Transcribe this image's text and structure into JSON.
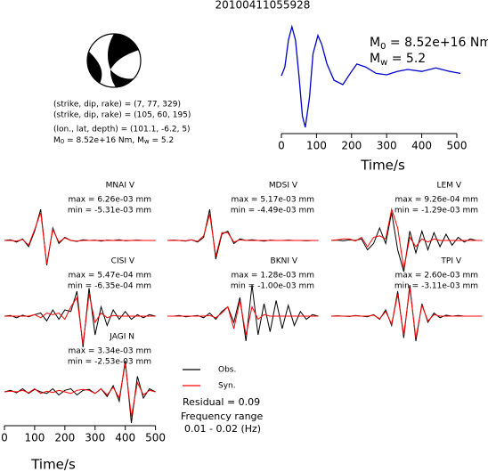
{
  "chart_data": [
    {
      "type": "line",
      "title": "20100411055928",
      "x": [
        0,
        10,
        20,
        30,
        40,
        50,
        60,
        68,
        80,
        90,
        104,
        115,
        130,
        150,
        175,
        200,
        215,
        240,
        270,
        300,
        330,
        360,
        400,
        440,
        480,
        510
      ],
      "values": [
        0,
        0.18,
        0.73,
        1.0,
        0.73,
        0,
        -0.82,
        -1.05,
        -0.45,
        0.45,
        0.82,
        0.64,
        0.24,
        -0.09,
        -0.18,
        0.09,
        0.24,
        0.18,
        0.05,
        0.02,
        0.09,
        0.13,
        0.09,
        0.16,
        0.09,
        0.05
      ],
      "color": "#0000cc",
      "xlim": [
        0,
        510
      ],
      "xticks": [
        0,
        100,
        200,
        300,
        400,
        500
      ],
      "xlabel": "Time/s",
      "moment": {
        "m": "M",
        "sub": "0",
        "text": " = 8.52e+16 Nm"
      },
      "magnitude": {
        "m": "M",
        "sub": "w",
        "text": " = 5.2"
      }
    },
    {
      "type": "waveforms",
      "x": [
        0,
        20,
        40,
        60,
        80,
        100,
        120,
        140,
        160,
        180,
        200,
        220,
        240,
        260,
        280,
        300,
        320,
        340,
        360,
        380,
        400,
        420,
        440,
        460,
        480,
        500
      ],
      "xlim": [
        0,
        510
      ],
      "xticks": [
        0,
        100,
        200,
        300,
        400,
        500
      ],
      "xlabel": "Time/s",
      "series": [
        {
          "name": "Obs.",
          "color": "#000000"
        },
        {
          "name": "Syn.",
          "color": "#ff0000"
        }
      ],
      "panels": [
        {
          "station": "MNAI V",
          "max": "max = 6.26e-03 mm",
          "min": "min = -5.31e-03 mm",
          "obs": [
            0,
            0.02,
            -0.05,
            0.05,
            -0.2,
            0.3,
            1.0,
            -0.8,
            0.4,
            -0.1,
            0.1,
            0,
            -0.03,
            0.02,
            0,
            0.01,
            -0.02,
            0.01,
            0,
            0.02,
            -0.01,
            0,
            0.01,
            0,
            0,
            0
          ],
          "syn": [
            0,
            0,
            -0.02,
            0.03,
            -0.15,
            0.35,
            0.9,
            -0.75,
            0.35,
            -0.05,
            0.08,
            0,
            -0.02,
            0,
            0,
            0,
            0,
            0,
            0,
            0,
            0,
            0,
            0,
            0,
            0,
            0
          ]
        },
        {
          "station": "MDSI V",
          "max": "max = 5.17e-03 mm",
          "min": "min = -4.49e-03 mm",
          "obs": [
            0,
            0.01,
            0,
            -0.02,
            0.02,
            -0.05,
            0.1,
            1.0,
            -0.6,
            0.2,
            0.3,
            -0.1,
            0.05,
            0,
            0.02,
            0,
            -0.02,
            0.01,
            0,
            0,
            0.01,
            0,
            0,
            -0.01,
            0,
            0
          ],
          "syn": [
            0,
            0,
            0,
            -0.01,
            0.02,
            -0.03,
            0.15,
            0.85,
            -0.5,
            0.25,
            0.25,
            -0.05,
            0.02,
            0,
            0,
            0,
            0,
            0,
            0,
            0,
            0,
            0,
            0,
            0,
            0,
            0
          ]
        },
        {
          "station": "LEM V",
          "max": "max = 9.26e-04 mm",
          "min": "min = -1.29e-03 mm",
          "obs": [
            0,
            0.01,
            -0.01,
            0.02,
            0,
            0.05,
            -0.3,
            -0.1,
            0.4,
            -0.1,
            0.9,
            -0.3,
            -1.0,
            0.3,
            -0.4,
            0.3,
            -0.3,
            0.25,
            -0.2,
            0.2,
            -0.15,
            0.1,
            -0.05,
            0.05,
            0,
            0
          ],
          "syn": [
            0,
            0.02,
            0.05,
            0.05,
            -0.02,
            0.1,
            -0.2,
            0.1,
            0.15,
            0.05,
            1.0,
            0.4,
            -0.9,
            0.1,
            -0.2,
            0.05,
            -0.05,
            0.05,
            0,
            0,
            0,
            0,
            0,
            0,
            0,
            0
          ]
        },
        {
          "station": "CISI V",
          "max": "max = 5.47e-04 mm",
          "min": "min = -6.35e-04 mm",
          "obs": [
            0,
            0.02,
            -0.05,
            0.03,
            -0.02,
            0.05,
            0.1,
            -0.15,
            0.2,
            -0.1,
            0.2,
            0.15,
            0.8,
            -1.0,
            0.9,
            -0.6,
            0.3,
            -0.3,
            0.2,
            -0.1,
            0.15,
            -0.1,
            0.05,
            -0.05,
            0.05,
            0
          ],
          "syn": [
            0,
            0,
            0,
            0,
            0,
            0.05,
            -0.05,
            0.1,
            0.05,
            0.1,
            -0.1,
            0.3,
            0.6,
            -0.9,
            0.7,
            -0.2,
            0.1,
            -0.05,
            0.02,
            0,
            0,
            0,
            0,
            0,
            0,
            0
          ]
        },
        {
          "station": "BKNI V",
          "max": "max = 1.28e-03 mm",
          "min": "min = -1.00e-03 mm",
          "obs": [
            0,
            0,
            0.02,
            -0.02,
            0,
            0.02,
            -0.05,
            0.1,
            -0.1,
            0.15,
            0.3,
            -0.2,
            0.6,
            -0.8,
            1.0,
            -0.6,
            0.4,
            -0.5,
            0.5,
            -0.4,
            0.35,
            -0.3,
            0.15,
            -0.1,
            0.05,
            0
          ],
          "syn": [
            0,
            0,
            0,
            0,
            0,
            0,
            0,
            0.02,
            -0.05,
            0.1,
            0.3,
            -0.4,
            0.5,
            -0.6,
            0.3,
            -0.1,
            0.05,
            0,
            0,
            0,
            0,
            0,
            0,
            0,
            0,
            0
          ]
        },
        {
          "station": "TPI V",
          "max": "max = 2.60e-03 mm",
          "min": "min = -3.11e-03 mm",
          "obs": [
            0,
            0.01,
            0,
            -0.01,
            0.02,
            0,
            -0.02,
            0.05,
            -0.1,
            0.2,
            -0.3,
            0.8,
            -0.7,
            1.0,
            -0.8,
            0.4,
            -0.2,
            0.1,
            -0.05,
            0.03,
            0,
            0.02,
            0,
            0,
            0,
            0
          ],
          "syn": [
            0,
            0,
            0,
            0,
            0.01,
            0,
            0,
            0.03,
            -0.08,
            0.15,
            -0.25,
            0.7,
            -0.6,
            0.9,
            -0.7,
            0.35,
            -0.15,
            0.05,
            0,
            0,
            0,
            0,
            0,
            0,
            0,
            0
          ]
        },
        {
          "station": "JAGI N",
          "max": "max = 3.34e-03 mm",
          "min": "min = -2.53e-03 mm",
          "obs": [
            0,
            0.05,
            -0.03,
            0.1,
            -0.05,
            0.08,
            0,
            -0.05,
            0.1,
            -0.1,
            0.05,
            0.1,
            -0.1,
            0.05,
            0.08,
            -0.05,
            0.1,
            -0.15,
            0.2,
            -0.3,
            1.0,
            -1.0,
            0.5,
            -0.2,
            0.1,
            0
          ],
          "syn": [
            0,
            0.02,
            0,
            0.05,
            -0.03,
            0.1,
            -0.05,
            0.02,
            -0.02,
            0.05,
            0,
            -0.05,
            0.05,
            0.08,
            0.05,
            -0.05,
            0.1,
            -0.1,
            0.15,
            -0.2,
            0.9,
            -0.8,
            0.3,
            -0.1,
            0.05,
            0
          ]
        }
      ],
      "residual": "Residual = 0.09",
      "frequency": [
        "Frequency range",
        "0.01 - 0.02 (Hz)"
      ]
    }
  ],
  "source_info": [
    "(strike, dip, rake) = (7, 77, 329)",
    "(strike, dip, rake) = (105, 60, 195)",
    "(lon., lat, depth) = (101.1, -6.2, 5)"
  ],
  "source_moment": [
    "M",
    "0",
    " = 8.52e+16 Nm, M",
    "w",
    " = 5.2"
  ]
}
